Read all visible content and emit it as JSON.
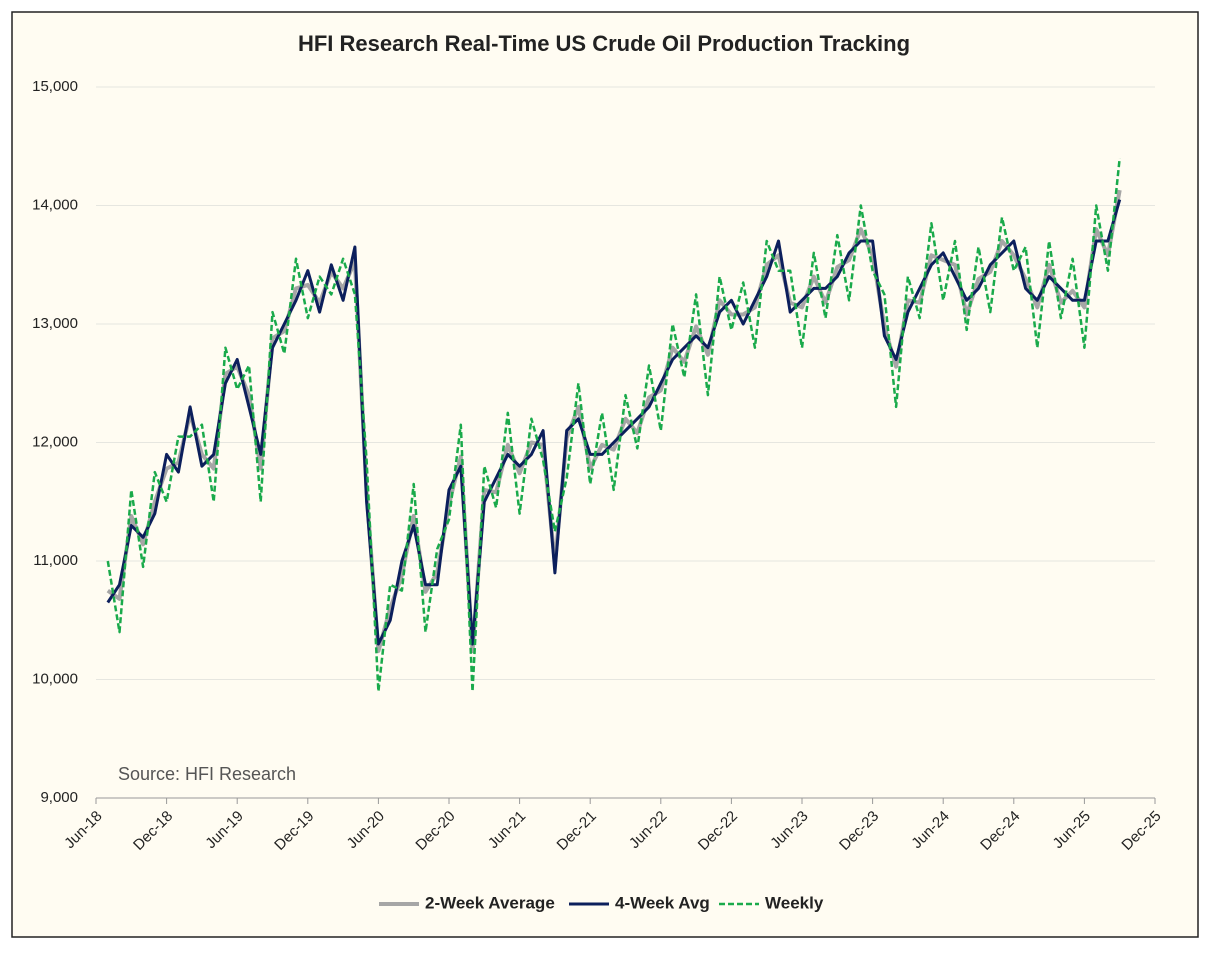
{
  "chart_data": {
    "type": "line",
    "title": "HFI Research Real-Time US Crude Oil Production Tracking",
    "annotation": "Source: HFI Research",
    "x": [
      "2018-07",
      "2018-08",
      "2018-09",
      "2018-10",
      "2018-11",
      "2018-12",
      "2019-01",
      "2019-02",
      "2019-03",
      "2019-04",
      "2019-05",
      "2019-06",
      "2019-07",
      "2019-08",
      "2019-09",
      "2019-10",
      "2019-11",
      "2019-12",
      "2020-01",
      "2020-02",
      "2020-03",
      "2020-04",
      "2020-05",
      "2020-06",
      "2020-07",
      "2020-08",
      "2020-09",
      "2020-10",
      "2020-11",
      "2020-12",
      "2021-01",
      "2021-02",
      "2021-03",
      "2021-04",
      "2021-05",
      "2021-06",
      "2021-07",
      "2021-08",
      "2021-09",
      "2021-10",
      "2021-11",
      "2021-12",
      "2022-01",
      "2022-02",
      "2022-03",
      "2022-04",
      "2022-05",
      "2022-06",
      "2022-07",
      "2022-08",
      "2022-09",
      "2022-10",
      "2022-11",
      "2022-12",
      "2023-01",
      "2023-02",
      "2023-03",
      "2023-04",
      "2023-05",
      "2023-06",
      "2023-07",
      "2023-08",
      "2023-09",
      "2023-10",
      "2023-11",
      "2023-12",
      "2024-01",
      "2024-02",
      "2024-03",
      "2024-04",
      "2024-05",
      "2024-06",
      "2024-07",
      "2024-08",
      "2024-09",
      "2024-10",
      "2024-11",
      "2024-12",
      "2025-01",
      "2025-02",
      "2025-03",
      "2025-04",
      "2025-05",
      "2025-06",
      "2025-07",
      "2025-08",
      "2025-09"
    ],
    "series": [
      {
        "name": "2-Week Average",
        "color": "#a6a6a6",
        "style": "solid",
        "width": 4,
        "values": [
          10750,
          10680,
          11380,
          11140,
          11500,
          11780,
          11830,
          12240,
          11900,
          11780,
          12580,
          12640,
          12400,
          11780,
          12880,
          12940,
          13300,
          13330,
          13180,
          13440,
          13300,
          13530,
          11580,
          10240,
          10600,
          10880,
          11380,
          10740,
          10900,
          11480,
          11880,
          10240,
          11600,
          11580,
          11980,
          11740,
          12000,
          11980,
          10980,
          12040,
          12300,
          11780,
          11980,
          11940,
          12200,
          12080,
          12380,
          12440,
          12800,
          12680,
          12980,
          12740,
          13200,
          13080,
          13080,
          13140,
          13500,
          13580,
          13180,
          13140,
          13400,
          13180,
          13480,
          13540,
          13800,
          13580,
          12980,
          12640,
          13200,
          13180,
          13580,
          13540,
          13500,
          13080,
          13380,
          13440,
          13700,
          13580,
          13380,
          13140,
          13500,
          13180,
          13280,
          13140,
          13800,
          13580,
          14130
        ]
      },
      {
        "name": "4-Week Avg",
        "color": "#0c1f5c",
        "style": "solid",
        "width": 3,
        "values": [
          10650,
          10800,
          11300,
          11200,
          11400,
          11900,
          11750,
          12300,
          11800,
          11900,
          12500,
          12700,
          12300,
          11900,
          12800,
          13000,
          13200,
          13450,
          13100,
          13500,
          13200,
          13650,
          11500,
          10300,
          10500,
          11000,
          11300,
          10800,
          10800,
          11600,
          11800,
          10300,
          11500,
          11700,
          11900,
          11800,
          11900,
          12100,
          10900,
          12100,
          12200,
          11900,
          11900,
          12000,
          12100,
          12200,
          12300,
          12500,
          12700,
          12800,
          12900,
          12800,
          13100,
          13200,
          13000,
          13200,
          13400,
          13700,
          13100,
          13200,
          13300,
          13300,
          13400,
          13600,
          13700,
          13700,
          12900,
          12700,
          13100,
          13300,
          13500,
          13600,
          13400,
          13200,
          13300,
          13500,
          13600,
          13700,
          13300,
          13200,
          13400,
          13300,
          13200,
          13200,
          13700,
          13700,
          14050
        ]
      },
      {
        "name": "Weekly",
        "color": "#1aaa4b",
        "style": "dashed",
        "width": 2.5,
        "values": [
          11000,
          10400,
          11600,
          10950,
          11750,
          11500,
          12050,
          12050,
          12150,
          11500,
          12800,
          12450,
          12650,
          11500,
          13100,
          12750,
          13550,
          13050,
          13400,
          13250,
          13550,
          13250,
          11850,
          9900,
          10800,
          10750,
          11650,
          10400,
          11100,
          11350,
          12150,
          9900,
          11800,
          11450,
          12250,
          11400,
          12200,
          11850,
          11250,
          11700,
          12500,
          11650,
          12250,
          11600,
          12400,
          11950,
          12650,
          12100,
          13000,
          12550,
          13250,
          12400,
          13400,
          12950,
          13350,
          12800,
          13700,
          13450,
          13450,
          12800,
          13600,
          13050,
          13750,
          13200,
          14000,
          13450,
          13250,
          12300,
          13400,
          13050,
          13850,
          13200,
          13700,
          12950,
          13650,
          13100,
          13900,
          13450,
          13650,
          12800,
          13700,
          13050,
          13550,
          12800,
          14000,
          13450,
          14400
        ]
      }
    ],
    "xlim": [
      "2018-06",
      "2025-12"
    ],
    "xticks": [
      {
        "value": "2018-06",
        "label": "Jun-18"
      },
      {
        "value": "2018-12",
        "label": "Dec-18"
      },
      {
        "value": "2019-06",
        "label": "Jun-19"
      },
      {
        "value": "2019-12",
        "label": "Dec-19"
      },
      {
        "value": "2020-06",
        "label": "Jun-20"
      },
      {
        "value": "2020-12",
        "label": "Dec-20"
      },
      {
        "value": "2021-06",
        "label": "Jun-21"
      },
      {
        "value": "2021-12",
        "label": "Dec-21"
      },
      {
        "value": "2022-06",
        "label": "Jun-22"
      },
      {
        "value": "2022-12",
        "label": "Dec-22"
      },
      {
        "value": "2023-06",
        "label": "Jun-23"
      },
      {
        "value": "2023-12",
        "label": "Dec-23"
      },
      {
        "value": "2024-06",
        "label": "Jun-24"
      },
      {
        "value": "2024-12",
        "label": "Dec-24"
      },
      {
        "value": "2025-06",
        "label": "Jun-25"
      },
      {
        "value": "2025-12",
        "label": "Dec-25"
      }
    ],
    "ylim": [
      9000,
      15000
    ],
    "yticks": [
      {
        "value": 9000,
        "label": "9,000"
      },
      {
        "value": 10000,
        "label": "10,000"
      },
      {
        "value": 11000,
        "label": "11,000"
      },
      {
        "value": 12000,
        "label": "12,000"
      },
      {
        "value": 13000,
        "label": "13,000"
      },
      {
        "value": 14000,
        "label": "14,000"
      },
      {
        "value": 15000,
        "label": "15,000"
      }
    ],
    "grid": true,
    "legend": "bottom"
  }
}
